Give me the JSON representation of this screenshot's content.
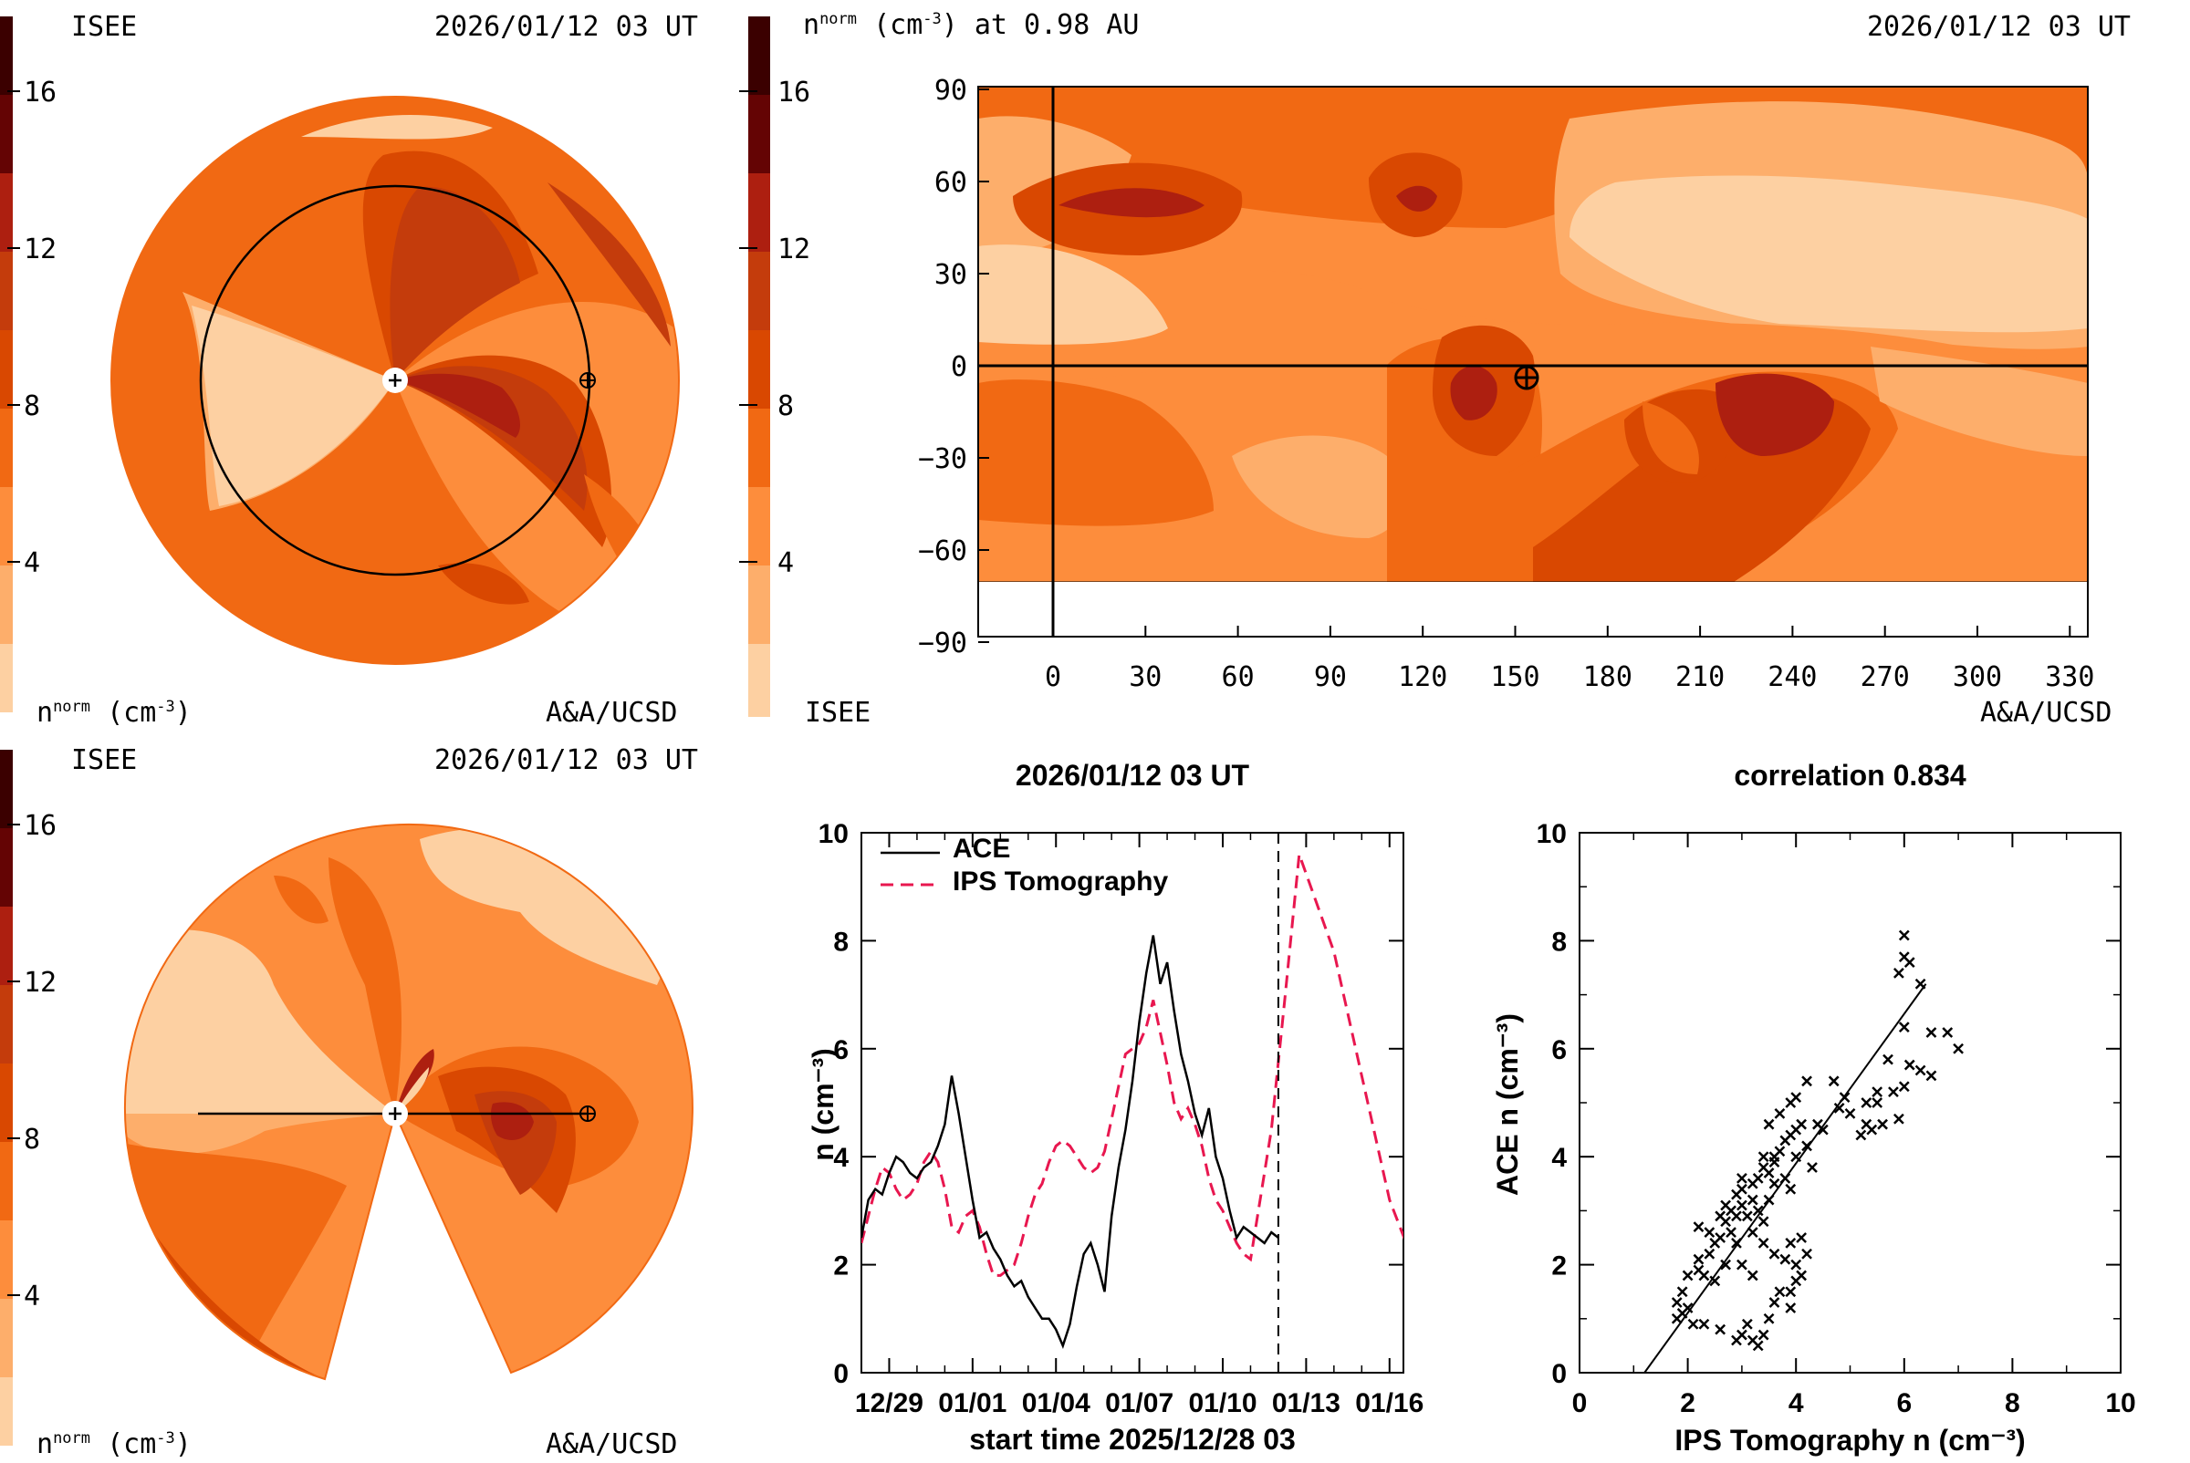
{
  "colors": {
    "level_0": "#fdd0a2",
    "level_1": "#fdae6b",
    "level_2": "#fd8d3c",
    "level_3": "#f16913",
    "level_4": "#d94801",
    "level_5": "#c43c0c",
    "level_6": "#ad1f10",
    "level_7": "#8c0f0b",
    "level_8": "#640404",
    "level_9": "#3b0000",
    "ips_line": "#e8174f",
    "ace_line": "#000000"
  },
  "panel_top_left": {
    "org": "ISEE",
    "time": "2026/01/12 03 UT",
    "units": "n",
    "units_sup": "norm",
    "units_tail": " (cm",
    "units_exp": "-3",
    "units_close": ")",
    "credit": "A&A/UCSD",
    "colorbar_ticks": [
      "16",
      "12",
      "8",
      "4"
    ]
  },
  "panel_top_right": {
    "title_main": "n",
    "title_sup": "norm",
    "title_rest": " (cm",
    "title_exp": "-3",
    "title_end": ") at 0.98 AU",
    "time": "2026/01/12 03 UT",
    "org": "ISEE",
    "credit": "A&A/UCSD",
    "colorbar_ticks": [
      "16",
      "12",
      "8",
      "4"
    ],
    "x_ticks": [
      "0",
      "30",
      "60",
      "90",
      "120",
      "150",
      "180",
      "210",
      "240",
      "270",
      "300",
      "330"
    ],
    "y_ticks": [
      "90",
      "60",
      "30",
      "0",
      "−30",
      "−60",
      "−90"
    ]
  },
  "panel_bottom_left": {
    "org": "ISEE",
    "time": "2026/01/12 03 UT",
    "units": "n",
    "units_sup": "norm",
    "units_tail": " (cm",
    "units_exp": "-3",
    "units_close": ")",
    "credit": "A&A/UCSD",
    "colorbar_ticks": [
      "16",
      "12",
      "8",
      "4"
    ]
  },
  "chart_data": [
    {
      "type": "line",
      "title": "2026/01/12 03 UT",
      "xlabel": "start time 2025/12/28 03",
      "ylabel": "n (cm⁻³)",
      "ylim": [
        0,
        10
      ],
      "xlim_days": [
        0,
        19.5
      ],
      "x_tick_labels": [
        "12/29",
        "01/01",
        "01/04",
        "01/07",
        "01/10",
        "01/13",
        "01/16"
      ],
      "y_ticks": [
        "0",
        "2",
        "4",
        "6",
        "8",
        "10"
      ],
      "now_marker_label": "01/12 03",
      "series": [
        {
          "name": "ACE",
          "style": "solid",
          "points": [
            [
              "12/28 03",
              2.5
            ],
            [
              "12/28 09",
              3.2
            ],
            [
              "12/28 15",
              3.4
            ],
            [
              "12/28 21",
              3.3
            ],
            [
              "12/29 03",
              3.7
            ],
            [
              "12/29 09",
              4.0
            ],
            [
              "12/29 15",
              3.9
            ],
            [
              "12/29 21",
              3.7
            ],
            [
              "12/30 03",
              3.6
            ],
            [
              "12/30 09",
              3.8
            ],
            [
              "12/30 15",
              3.9
            ],
            [
              "12/30 21",
              4.2
            ],
            [
              "12/31 03",
              4.6
            ],
            [
              "12/31 09",
              5.5
            ],
            [
              "12/31 15",
              4.8
            ],
            [
              "12/31 21",
              4.0
            ],
            [
              "01/01 03",
              3.2
            ],
            [
              "01/01 09",
              2.5
            ],
            [
              "01/01 15",
              2.6
            ],
            [
              "01/01 21",
              2.3
            ],
            [
              "01/02 03",
              2.1
            ],
            [
              "01/02 09",
              1.8
            ],
            [
              "01/02 15",
              1.6
            ],
            [
              "01/02 21",
              1.7
            ],
            [
              "01/03 03",
              1.4
            ],
            [
              "01/03 09",
              1.2
            ],
            [
              "01/03 15",
              1.0
            ],
            [
              "01/03 21",
              1.0
            ],
            [
              "01/04 03",
              0.8
            ],
            [
              "01/04 09",
              0.5
            ],
            [
              "01/04 15",
              0.9
            ],
            [
              "01/04 21",
              1.6
            ],
            [
              "01/05 03",
              2.2
            ],
            [
              "01/05 09",
              2.4
            ],
            [
              "01/05 15",
              2.0
            ],
            [
              "01/05 21",
              1.5
            ],
            [
              "01/06 03",
              2.9
            ],
            [
              "01/06 09",
              3.8
            ],
            [
              "01/06 15",
              4.5
            ],
            [
              "01/06 21",
              5.4
            ],
            [
              "01/07 03",
              6.5
            ],
            [
              "01/07 09",
              7.4
            ],
            [
              "01/07 15",
              8.1
            ],
            [
              "01/07 21",
              7.2
            ],
            [
              "01/08 03",
              7.6
            ],
            [
              "01/08 09",
              6.7
            ],
            [
              "01/08 15",
              5.9
            ],
            [
              "01/08 21",
              5.4
            ],
            [
              "01/09 03",
              4.8
            ],
            [
              "01/09 09",
              4.4
            ],
            [
              "01/09 15",
              4.9
            ],
            [
              "01/09 21",
              4.0
            ],
            [
              "01/10 03",
              3.6
            ],
            [
              "01/10 09",
              3.0
            ],
            [
              "01/10 15",
              2.5
            ],
            [
              "01/10 21",
              2.7
            ],
            [
              "01/11 03",
              2.6
            ],
            [
              "01/11 09",
              2.5
            ],
            [
              "01/11 15",
              2.4
            ],
            [
              "01/11 21",
              2.6
            ],
            [
              "01/12 03",
              2.5
            ]
          ]
        },
        {
          "name": "IPS Tomography",
          "style": "dashed",
          "points": [
            [
              "12/28 03",
              2.4
            ],
            [
              "12/28 09",
              2.9
            ],
            [
              "12/28 15",
              3.4
            ],
            [
              "12/28 21",
              3.8
            ],
            [
              "12/29 03",
              3.7
            ],
            [
              "12/29 09",
              3.4
            ],
            [
              "12/29 15",
              3.2
            ],
            [
              "12/29 21",
              3.3
            ],
            [
              "12/30 03",
              3.5
            ],
            [
              "12/30 09",
              3.9
            ],
            [
              "12/30 15",
              4.1
            ],
            [
              "12/30 21",
              3.9
            ],
            [
              "12/31 03",
              3.4
            ],
            [
              "12/31 09",
              2.7
            ],
            [
              "12/31 15",
              2.6
            ],
            [
              "12/31 21",
              2.9
            ],
            [
              "01/01 03",
              3.0
            ],
            [
              "01/01 09",
              2.7
            ],
            [
              "01/01 15",
              2.2
            ],
            [
              "01/01 21",
              1.8
            ],
            [
              "01/02 03",
              1.8
            ],
            [
              "01/02 09",
              1.9
            ],
            [
              "01/02 15",
              2.0
            ],
            [
              "01/02 21",
              2.4
            ],
            [
              "01/03 03",
              2.9
            ],
            [
              "01/03 09",
              3.3
            ],
            [
              "01/03 15",
              3.5
            ],
            [
              "01/03 21",
              3.9
            ],
            [
              "01/04 03",
              4.2
            ],
            [
              "01/04 09",
              4.3
            ],
            [
              "01/04 15",
              4.2
            ],
            [
              "01/04 21",
              4.0
            ],
            [
              "01/05 03",
              3.8
            ],
            [
              "01/05 09",
              3.7
            ],
            [
              "01/05 15",
              3.8
            ],
            [
              "01/05 21",
              4.1
            ],
            [
              "01/06 03",
              4.7
            ],
            [
              "01/06 09",
              5.3
            ],
            [
              "01/06 15",
              5.9
            ],
            [
              "01/06 21",
              6.0
            ],
            [
              "01/07 03",
              6.1
            ],
            [
              "01/07 09",
              6.4
            ],
            [
              "01/07 15",
              6.9
            ],
            [
              "01/07 21",
              6.3
            ],
            [
              "01/08 03",
              5.7
            ],
            [
              "01/08 09",
              5.0
            ],
            [
              "01/08 15",
              4.7
            ],
            [
              "01/08 21",
              4.9
            ],
            [
              "01/09 03",
              4.6
            ],
            [
              "01/09 09",
              4.2
            ],
            [
              "01/09 15",
              3.6
            ],
            [
              "01/09 21",
              3.2
            ],
            [
              "01/10 03",
              3.0
            ],
            [
              "01/10 09",
              2.7
            ],
            [
              "01/10 15",
              2.4
            ],
            [
              "01/10 21",
              2.2
            ],
            [
              "01/11 03",
              2.1
            ],
            [
              "01/11 21",
              4.5
            ],
            [
              "01/12 09",
              7.0
            ],
            [
              "01/12 21",
              9.6
            ],
            [
              "01/14 03",
              7.8
            ],
            [
              "01/15 03",
              5.5
            ],
            [
              "01/16 03",
              3.2
            ],
            [
              "01/16 21",
              2.2
            ]
          ]
        }
      ]
    },
    {
      "type": "scatter",
      "title": "correlation 0.834",
      "xlabel": "IPS Tomography n (cm⁻³)",
      "ylabel": "ACE n (cm⁻³)",
      "xlim": [
        0,
        10
      ],
      "ylim": [
        0,
        10
      ],
      "x_ticks": [
        "0",
        "2",
        "4",
        "6",
        "8",
        "10"
      ],
      "y_ticks": [
        "0",
        "2",
        "4",
        "6",
        "8",
        "10"
      ],
      "fit_line": [
        [
          1.2,
          -0.2
        ],
        [
          6.4,
          7.2
        ]
      ],
      "points": [
        [
          1.8,
          1.0
        ],
        [
          1.8,
          1.3
        ],
        [
          1.9,
          1.1
        ],
        [
          1.9,
          1.5
        ],
        [
          2.0,
          1.2
        ],
        [
          2.1,
          0.9
        ],
        [
          2.3,
          0.9
        ],
        [
          2.6,
          0.8
        ],
        [
          2.3,
          1.8
        ],
        [
          2.4,
          2.2
        ],
        [
          2.2,
          2.7
        ],
        [
          2.4,
          2.6
        ],
        [
          2.6,
          2.5
        ],
        [
          2.7,
          2.8
        ],
        [
          2.8,
          2.6
        ],
        [
          2.9,
          2.4
        ],
        [
          2.7,
          3.1
        ],
        [
          2.9,
          3.3
        ],
        [
          3.0,
          3.4
        ],
        [
          3.2,
          3.5
        ],
        [
          3.3,
          3.6
        ],
        [
          3.4,
          3.8
        ],
        [
          3.5,
          3.7
        ],
        [
          3.6,
          3.9
        ],
        [
          3.7,
          4.1
        ],
        [
          3.8,
          4.3
        ],
        [
          3.9,
          4.4
        ],
        [
          4.0,
          4.5
        ],
        [
          4.1,
          4.6
        ],
        [
          4.2,
          5.4
        ],
        [
          3.5,
          4.6
        ],
        [
          3.7,
          4.8
        ],
        [
          3.9,
          5.0
        ],
        [
          4.0,
          5.1
        ],
        [
          3.4,
          4.0
        ],
        [
          3.6,
          4.0
        ],
        [
          2.8,
          3.0
        ],
        [
          3.0,
          3.1
        ],
        [
          3.1,
          2.9
        ],
        [
          3.3,
          3.0
        ],
        [
          3.4,
          2.8
        ],
        [
          3.5,
          3.2
        ],
        [
          3.6,
          3.5
        ],
        [
          3.8,
          3.6
        ],
        [
          3.9,
          3.4
        ],
        [
          3.2,
          2.6
        ],
        [
          3.4,
          2.4
        ],
        [
          3.6,
          2.2
        ],
        [
          3.8,
          2.1
        ],
        [
          3.9,
          2.4
        ],
        [
          4.0,
          2.0
        ],
        [
          4.1,
          1.8
        ],
        [
          4.2,
          2.2
        ],
        [
          4.1,
          2.5
        ],
        [
          3.9,
          1.5
        ],
        [
          3.9,
          1.2
        ],
        [
          4.0,
          1.7
        ],
        [
          3.2,
          1.8
        ],
        [
          3.0,
          2.0
        ],
        [
          2.7,
          2.0
        ],
        [
          2.5,
          1.7
        ],
        [
          3.0,
          0.7
        ],
        [
          3.2,
          0.6
        ],
        [
          3.3,
          0.5
        ],
        [
          3.4,
          0.7
        ],
        [
          3.5,
          1.0
        ],
        [
          3.6,
          1.3
        ],
        [
          3.7,
          1.5
        ],
        [
          2.9,
          0.6
        ],
        [
          3.1,
          0.9
        ],
        [
          4.0,
          4.0
        ],
        [
          4.2,
          4.2
        ],
        [
          4.5,
          4.5
        ],
        [
          4.8,
          4.9
        ],
        [
          5.0,
          4.8
        ],
        [
          5.3,
          4.6
        ],
        [
          5.4,
          4.5
        ],
        [
          5.2,
          4.4
        ],
        [
          5.6,
          4.6
        ],
        [
          5.9,
          4.7
        ],
        [
          5.5,
          5.0
        ],
        [
          5.8,
          5.2
        ],
        [
          6.0,
          5.3
        ],
        [
          5.7,
          5.8
        ],
        [
          6.1,
          5.7
        ],
        [
          6.3,
          5.6
        ],
        [
          6.5,
          5.5
        ],
        [
          7.0,
          6.0
        ],
        [
          6.8,
          6.3
        ],
        [
          6.0,
          6.4
        ],
        [
          5.9,
          7.4
        ],
        [
          6.0,
          7.7
        ],
        [
          6.1,
          7.6
        ],
        [
          6.0,
          8.1
        ],
        [
          6.3,
          7.2
        ],
        [
          6.5,
          6.3
        ],
        [
          5.5,
          5.2
        ],
        [
          5.3,
          5.0
        ],
        [
          4.9,
          5.1
        ],
        [
          4.7,
          5.4
        ],
        [
          4.4,
          4.6
        ],
        [
          4.3,
          3.8
        ],
        [
          3.2,
          3.2
        ],
        [
          3.0,
          3.6
        ],
        [
          2.9,
          2.9
        ],
        [
          2.6,
          2.9
        ],
        [
          2.5,
          2.4
        ],
        [
          2.2,
          1.9
        ],
        [
          2.0,
          1.8
        ],
        [
          2.2,
          2.1
        ]
      ]
    }
  ]
}
